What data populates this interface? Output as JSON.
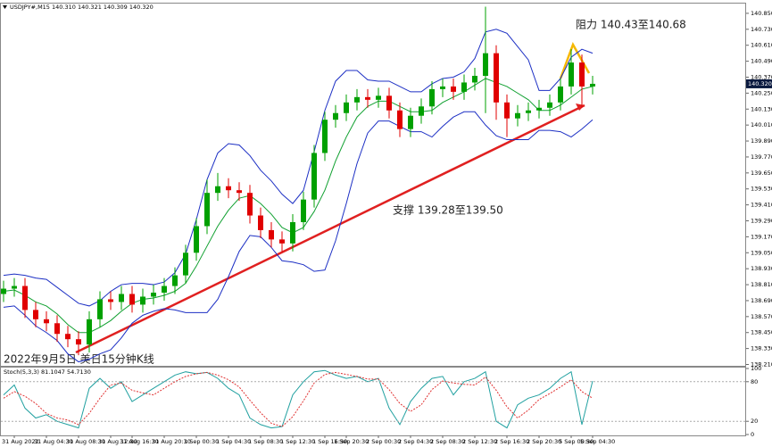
{
  "chart_data": [
    {
      "type": "candlestick",
      "title": "USDJPY#,M15  140.310 140.321 140.309 140.320",
      "annotations": [
        "阻力 140.43至140.68",
        "支撑 139.28至139.50",
        "2022年9月5日 美日15分钟K线"
      ],
      "categories": [
        null,
        "31 Aug 2022",
        null,
        null,
        "31 Aug 04:30",
        null,
        null,
        "31 Aug 08:30",
        null,
        null,
        "31 Aug 12:30",
        null,
        "31 Aug 16:30",
        null,
        null,
        "31 Aug 20:30",
        null,
        null,
        "1 Sep 00:30",
        null,
        null,
        "1 Sep 04:30",
        null,
        null,
        "1 Sep 08:30",
        null,
        null,
        "1 Sep 12:30",
        null,
        null,
        "1 Sep 16:30",
        null,
        "1 Sep 20:30",
        null,
        null,
        "2 Sep 00:30",
        null,
        null,
        "2 Sep 04:30",
        null,
        null,
        "2 Sep 08:30",
        null,
        null,
        "2 Sep 12:30",
        null,
        null,
        "2 Sep 16:30",
        null,
        null,
        "2 Sep 20:30",
        null,
        null,
        "5 Sep 00:30",
        null,
        "5 Sep 04:30"
      ],
      "open": [
        138.74,
        138.78,
        138.8,
        138.62,
        138.55,
        138.52,
        138.44,
        138.4,
        138.36,
        138.55,
        138.7,
        138.68,
        138.74,
        138.66,
        138.72,
        138.75,
        138.8,
        138.88,
        139.05,
        139.25,
        139.5,
        139.55,
        139.52,
        139.5,
        139.33,
        139.22,
        139.15,
        139.12,
        139.28,
        139.45,
        139.8,
        140.05,
        140.1,
        140.18,
        140.22,
        140.2,
        140.23,
        140.12,
        139.98,
        140.08,
        140.15,
        140.28,
        140.3,
        140.26,
        140.33,
        140.38,
        140.55,
        140.18,
        140.06,
        140.1,
        140.12,
        140.14,
        140.18,
        140.3,
        140.48,
        140.3
      ],
      "high": [
        138.84,
        138.86,
        138.86,
        138.68,
        138.61,
        138.58,
        138.5,
        138.46,
        138.61,
        138.76,
        138.76,
        138.8,
        138.8,
        138.78,
        138.81,
        138.86,
        138.94,
        139.11,
        139.31,
        139.6,
        139.65,
        139.61,
        139.58,
        139.56,
        139.39,
        139.28,
        139.21,
        139.34,
        139.51,
        139.86,
        140.11,
        140.16,
        140.24,
        140.28,
        140.28,
        140.29,
        140.29,
        140.18,
        140.14,
        140.21,
        140.34,
        140.36,
        140.36,
        140.39,
        140.44,
        140.9,
        140.61,
        140.24,
        140.16,
        140.18,
        140.2,
        140.24,
        140.36,
        140.58,
        140.54,
        140.38
      ],
      "low": [
        138.68,
        138.72,
        138.56,
        138.49,
        138.46,
        138.38,
        138.34,
        138.28,
        138.3,
        138.49,
        138.62,
        138.62,
        138.6,
        138.6,
        138.66,
        138.69,
        138.74,
        138.82,
        138.99,
        139.19,
        139.44,
        139.46,
        139.44,
        139.27,
        139.16,
        139.09,
        139.06,
        139.06,
        139.22,
        139.39,
        139.74,
        139.99,
        140.04,
        140.12,
        140.14,
        140.14,
        140.06,
        139.92,
        139.92,
        140.02,
        140.09,
        140.22,
        140.2,
        140.2,
        140.27,
        140.1,
        140.05,
        139.92,
        140.0,
        140.04,
        140.06,
        140.08,
        140.12,
        140.24,
        140.14,
        140.24
      ],
      "close": [
        138.78,
        138.8,
        138.62,
        138.55,
        138.52,
        138.44,
        138.4,
        138.36,
        138.55,
        138.7,
        138.68,
        138.74,
        138.66,
        138.72,
        138.75,
        138.8,
        138.88,
        139.05,
        139.25,
        139.5,
        139.55,
        139.52,
        139.5,
        139.33,
        139.22,
        139.15,
        139.12,
        139.28,
        139.45,
        139.8,
        140.05,
        140.1,
        140.18,
        140.22,
        140.2,
        140.23,
        140.12,
        139.98,
        140.08,
        140.15,
        140.28,
        140.3,
        140.26,
        140.33,
        140.38,
        140.55,
        140.18,
        140.06,
        140.1,
        140.12,
        140.14,
        140.18,
        140.3,
        140.48,
        140.3,
        140.32
      ],
      "up_color": "#00a000",
      "down_color": "#e00000",
      "bollinger": {
        "band_color": "#1c2fc4",
        "middle_color": "#10a030",
        "middle": [
          138.76,
          138.77,
          138.73,
          138.68,
          138.65,
          138.59,
          138.51,
          138.45,
          138.45,
          138.49,
          138.54,
          138.61,
          138.67,
          138.7,
          138.71,
          138.73,
          138.76,
          138.82,
          138.95,
          139.1,
          139.25,
          139.37,
          139.46,
          139.48,
          139.42,
          139.34,
          139.24,
          139.2,
          139.24,
          139.36,
          139.52,
          139.74,
          139.92,
          140.07,
          140.15,
          140.19,
          140.19,
          140.15,
          140.11,
          140.11,
          140.12,
          140.18,
          140.22,
          140.26,
          140.31,
          140.36,
          140.33,
          140.3,
          140.25,
          140.2,
          140.12,
          140.12,
          140.16,
          140.22,
          140.28,
          140.3
        ],
        "deviation": [
          0.12,
          0.12,
          0.15,
          0.18,
          0.2,
          0.2,
          0.22,
          0.22,
          0.2,
          0.2,
          0.22,
          0.2,
          0.15,
          0.12,
          0.1,
          0.1,
          0.14,
          0.22,
          0.35,
          0.5,
          0.55,
          0.5,
          0.4,
          0.3,
          0.25,
          0.25,
          0.25,
          0.22,
          0.28,
          0.45,
          0.6,
          0.6,
          0.5,
          0.35,
          0.2,
          0.15,
          0.15,
          0.15,
          0.15,
          0.15,
          0.2,
          0.18,
          0.15,
          0.15,
          0.2,
          0.35,
          0.4,
          0.4,
          0.35,
          0.3,
          0.15,
          0.15,
          0.2,
          0.3,
          0.3,
          0.25
        ]
      },
      "current_price": {
        "value": 140.32,
        "label": "140.320"
      },
      "ylim": [
        138.2,
        140.93
      ],
      "yticks": [
        {
          "value": 138.21,
          "label": "138.210"
        },
        {
          "value": 138.33,
          "label": "138.330"
        },
        {
          "value": 138.45,
          "label": "138.450"
        },
        {
          "value": 138.57,
          "label": "138.570"
        },
        {
          "value": 138.69,
          "label": "138.690"
        },
        {
          "value": 138.81,
          "label": "138.810"
        },
        {
          "value": 138.93,
          "label": "138.930"
        },
        {
          "value": 139.05,
          "label": "139.050"
        },
        {
          "value": 139.17,
          "label": "139.170"
        },
        {
          "value": 139.29,
          "label": "139.290"
        },
        {
          "value": 139.41,
          "label": "139.410"
        },
        {
          "value": 139.53,
          "label": "139.530"
        },
        {
          "value": 139.65,
          "label": "139.650"
        },
        {
          "value": 139.77,
          "label": "139.770"
        },
        {
          "value": 139.89,
          "label": "139.890"
        },
        {
          "value": 140.01,
          "label": "140.010"
        },
        {
          "value": 140.13,
          "label": "140.130"
        },
        {
          "value": 140.25,
          "label": "140.250"
        },
        {
          "value": 140.37,
          "label": "140.370"
        },
        {
          "value": 140.49,
          "label": "140.490"
        },
        {
          "value": 140.61,
          "label": "140.610"
        },
        {
          "value": 140.73,
          "label": "140.730"
        },
        {
          "value": 140.85,
          "label": "140.850"
        }
      ]
    },
    {
      "type": "line",
      "title": "Stoch(5,3,3) 81.1047 54.7130",
      "series": [
        {
          "name": "Main",
          "color": "#20a0a0",
          "values": [
            60,
            75,
            40,
            25,
            30,
            20,
            15,
            10,
            70,
            85,
            70,
            80,
            50,
            60,
            70,
            80,
            90,
            95,
            92,
            94,
            85,
            70,
            60,
            25,
            15,
            10,
            12,
            60,
            80,
            95,
            97,
            90,
            85,
            88,
            80,
            85,
            40,
            15,
            50,
            70,
            85,
            88,
            60,
            80,
            85,
            95,
            20,
            10,
            45,
            55,
            60,
            70,
            85,
            95,
            15,
            81
          ]
        },
        {
          "name": "Signal",
          "color": "#e03030",
          "values": [
            55,
            65,
            58,
            47,
            32,
            25,
            22,
            15,
            32,
            55,
            75,
            78,
            67,
            63,
            60,
            70,
            80,
            88,
            92,
            94,
            90,
            83,
            72,
            52,
            33,
            17,
            12,
            27,
            51,
            78,
            91,
            94,
            91,
            88,
            84,
            84,
            68,
            47,
            35,
            45,
            68,
            81,
            78,
            76,
            75,
            87,
            67,
            42,
            25,
            37,
            53,
            62,
            72,
            83,
            65,
            55
          ]
        }
      ],
      "ylim": [
        0,
        100
      ],
      "yticks": [
        100,
        80,
        20,
        0
      ]
    }
  ]
}
